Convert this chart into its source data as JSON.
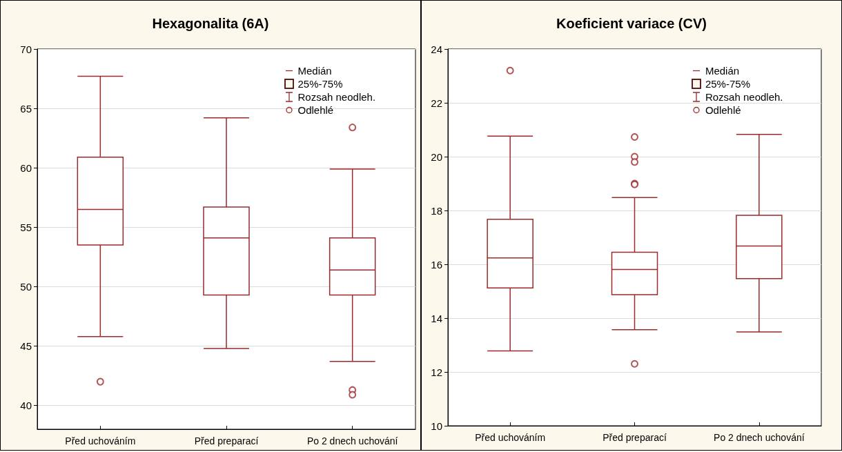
{
  "chart_data": [
    {
      "type": "box",
      "title": "Hexagonalita (6A)",
      "categories": [
        "Před uchováním",
        "Před preparací",
        "Po 2 dnech uchování"
      ],
      "color": "#9b2a2a",
      "marker": "circle",
      "grid": "y",
      "ylim": [
        38,
        70
      ],
      "yticks": [
        40,
        45,
        50,
        55,
        60,
        65,
        70
      ],
      "boxes": [
        {
          "low": 45.8,
          "q1": 53.5,
          "median": 56.5,
          "q3": 60.9,
          "high": 67.7,
          "outliers": [
            42.0
          ]
        },
        {
          "low": 44.8,
          "q1": 49.3,
          "median": 54.1,
          "q3": 56.7,
          "high": 64.2
        },
        {
          "low": 43.7,
          "q1": 49.3,
          "median": 51.4,
          "q3": 54.1,
          "high": 59.9,
          "outliers": [
            63.4,
            41.3,
            40.9
          ]
        }
      ],
      "annotations": [
        "Medián",
        "25%-75%",
        "Rozsah neodleh.",
        "Odlehlé"
      ]
    },
    {
      "type": "box",
      "title": "Koeficient variace (CV)",
      "categories": [
        "Před uchováním",
        "Před preparací",
        "Po 2 dnech uchování"
      ],
      "color": "#9b2a2a",
      "marker": "circle",
      "grid": "y",
      "ylim": [
        10,
        24
      ],
      "yticks": [
        10,
        12,
        14,
        16,
        18,
        20,
        22,
        24
      ],
      "boxes": [
        {
          "low": 12.78,
          "q1": 15.12,
          "median": 16.24,
          "q3": 17.67,
          "high": 20.76,
          "outliers": [
            23.2
          ]
        },
        {
          "low": 13.57,
          "q1": 14.87,
          "median": 15.81,
          "q3": 16.45,
          "high": 18.48,
          "outliers": [
            20.73,
            20.0,
            19.8,
            19.0,
            18.97,
            12.3
          ]
        },
        {
          "low": 13.49,
          "q1": 15.47,
          "median": 16.68,
          "q3": 17.82,
          "high": 20.83
        }
      ],
      "annotations": [
        "Medián",
        "25%-75%",
        "Rozsah neodleh.",
        "Odlehlé"
      ]
    }
  ]
}
